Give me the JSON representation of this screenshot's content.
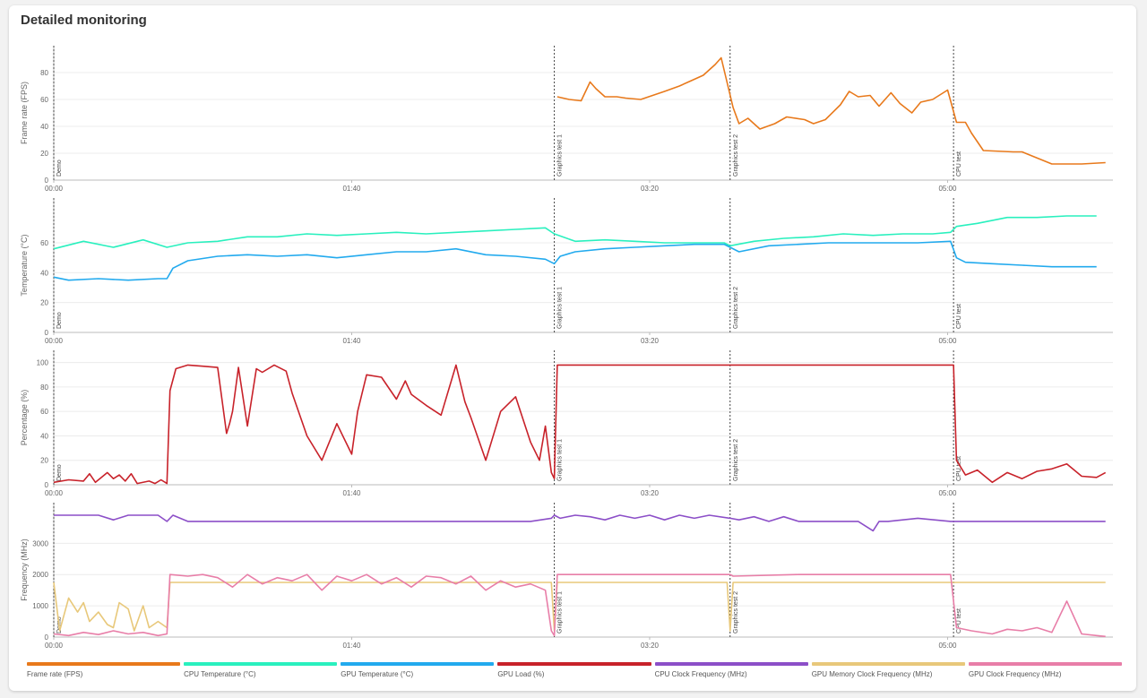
{
  "header": {
    "title": "Detailed monitoring"
  },
  "chart_data": {
    "type": "line",
    "x_unit": "mm:ss",
    "x_tick_labels": [
      "00:00",
      "01:40",
      "03:20",
      "05:00"
    ],
    "segments": [
      {
        "label": "Demo",
        "start": "00:00"
      },
      {
        "label": "Graphics test 1",
        "start": "02:48"
      },
      {
        "label": "Graphics test 2",
        "start": "03:47"
      },
      {
        "label": "CPU test",
        "start": "05:02"
      }
    ],
    "panels": [
      {
        "id": "fps",
        "ylabel": "Frame rate (FPS)",
        "ylim": [
          0,
          100
        ],
        "yticks": [
          "0",
          "20",
          "40",
          "60",
          "80"
        ],
        "series": [
          {
            "name": "Frame rate (FPS)",
            "color": "#e8791b",
            "x": [
              "02:49",
              "02:53",
              "02:57",
              "03:00",
              "03:02",
              "03:05",
              "03:09",
              "03:12",
              "03:17",
              "03:21",
              "03:25",
              "03:30",
              "03:34",
              "03:38",
              "03:42",
              "03:44",
              "03:48",
              "03:50",
              "03:53",
              "03:57",
              "04:02",
              "04:06",
              "04:12",
              "04:15",
              "04:19",
              "04:24",
              "04:27",
              "04:30",
              "04:34",
              "04:37",
              "04:41",
              "04:44",
              "04:48",
              "04:51",
              "04:55",
              "05:00",
              "05:03",
              "05:06",
              "05:08",
              "05:12",
              "05:22",
              "05:25",
              "05:35",
              "05:45",
              "05:53"
            ],
            "values": [
              62,
              60,
              59,
              73,
              68,
              62,
              62,
              61,
              60,
              63,
              66,
              70,
              74,
              78,
              86,
              91,
              54,
              42,
              46,
              38,
              42,
              47,
              45,
              42,
              45,
              56,
              66,
              62,
              63,
              55,
              65,
              57,
              50,
              58,
              60,
              67,
              43,
              43,
              35,
              22,
              21,
              21,
              12,
              12,
              13
            ]
          }
        ]
      },
      {
        "id": "temperature",
        "ylabel": "Temperature (°C)",
        "ylim": [
          0,
          90
        ],
        "yticks": [
          "0",
          "20",
          "40",
          "60"
        ],
        "series": [
          {
            "name": "CPU Temperature (°C)",
            "color": "#29f0be",
            "x": [
              "00:00",
              "00:10",
              "00:20",
              "00:30",
              "00:38",
              "00:45",
              "00:55",
              "01:05",
              "01:15",
              "01:25",
              "01:35",
              "01:45",
              "01:55",
              "02:05",
              "02:15",
              "02:25",
              "02:35",
              "02:45",
              "02:48",
              "02:55",
              "03:05",
              "03:15",
              "03:25",
              "03:35",
              "03:45",
              "03:47",
              "03:55",
              "04:05",
              "04:15",
              "04:25",
              "04:35",
              "04:45",
              "04:55",
              "05:01",
              "05:03",
              "05:10",
              "05:20",
              "05:30",
              "05:40",
              "05:50"
            ],
            "values": [
              56,
              61,
              57,
              62,
              57,
              60,
              61,
              64,
              64,
              66,
              65,
              66,
              67,
              66,
              67,
              68,
              69,
              70,
              66,
              61,
              62,
              61,
              60,
              60,
              60,
              58,
              61,
              63,
              64,
              66,
              65,
              66,
              66,
              67,
              71,
              73,
              77,
              77,
              78,
              78
            ]
          },
          {
            "name": "GPU Temperature (°C)",
            "color": "#22aaee",
            "x": [
              "00:00",
              "00:05",
              "00:15",
              "00:25",
              "00:35",
              "00:38",
              "00:40",
              "00:45",
              "00:55",
              "01:05",
              "01:15",
              "01:25",
              "01:35",
              "01:45",
              "01:55",
              "02:05",
              "02:15",
              "02:25",
              "02:35",
              "02:45",
              "02:47",
              "02:48",
              "02:50",
              "02:55",
              "03:05",
              "03:15",
              "03:25",
              "03:35",
              "03:45",
              "03:47",
              "03:50",
              "04:00",
              "04:10",
              "04:20",
              "04:30",
              "04:40",
              "04:50",
              "05:01",
              "05:03",
              "05:06",
              "05:15",
              "05:25",
              "05:35",
              "05:50"
            ],
            "values": [
              37,
              35,
              36,
              35,
              36,
              36,
              43,
              48,
              51,
              52,
              51,
              52,
              50,
              52,
              54,
              54,
              56,
              52,
              51,
              49,
              47,
              46,
              51,
              54,
              56,
              57,
              58,
              59,
              59,
              57,
              54,
              58,
              59,
              60,
              60,
              60,
              60,
              61,
              50,
              47,
              46,
              45,
              44,
              44
            ]
          }
        ]
      },
      {
        "id": "percentage",
        "ylabel": "Percentage (%)",
        "ylim": [
          0,
          110
        ],
        "yticks": [
          "0",
          "20",
          "40",
          "60",
          "80",
          "100"
        ],
        "series": [
          {
            "name": "GPU Load (%)",
            "color": "#c8222a",
            "x": [
              "00:00",
              "00:05",
              "00:10",
              "00:12",
              "00:14",
              "00:18",
              "00:20",
              "00:22",
              "00:24",
              "00:26",
              "00:28",
              "00:32",
              "00:34",
              "00:36",
              "00:38",
              "00:39",
              "00:41",
              "00:45",
              "00:50",
              "00:55",
              "00:58",
              "00:59",
              "01:00",
              "01:02",
              "01:05",
              "01:08",
              "01:10",
              "01:14",
              "01:18",
              "01:20",
              "01:25",
              "01:30",
              "01:35",
              "01:40",
              "01:42",
              "01:45",
              "01:50",
              "01:55",
              "01:58",
              "02:00",
              "02:05",
              "02:10",
              "02:15",
              "02:18",
              "02:20",
              "02:25",
              "02:30",
              "02:35",
              "02:40",
              "02:43",
              "02:45",
              "02:47",
              "02:48",
              "02:49",
              "03:00",
              "03:20",
              "03:40",
              "03:47",
              "04:00",
              "04:20",
              "04:40",
              "05:00",
              "05:02",
              "05:03",
              "05:06",
              "05:10",
              "05:15",
              "05:20",
              "05:25",
              "05:30",
              "05:35",
              "05:40",
              "05:45",
              "05:50",
              "05:53"
            ],
            "values": [
              2,
              4,
              3,
              9,
              2,
              10,
              5,
              8,
              3,
              9,
              1,
              3,
              1,
              4,
              1,
              77,
              95,
              98,
              97,
              96,
              42,
              50,
              60,
              96,
              48,
              95,
              92,
              98,
              93,
              75,
              40,
              20,
              50,
              25,
              60,
              90,
              88,
              70,
              85,
              74,
              65,
              57,
              98,
              68,
              55,
              20,
              60,
              72,
              35,
              20,
              48,
              10,
              5,
              98,
              98,
              98,
              98,
              98,
              98,
              98,
              98,
              98,
              98,
              20,
              8,
              12,
              2,
              10,
              5,
              11,
              13,
              17,
              7,
              6,
              10
            ]
          }
        ]
      },
      {
        "id": "frequency",
        "ylabel": "Frequency (MHz)",
        "ylim": [
          0,
          4300
        ],
        "yticks": [
          "0",
          "1000",
          "2000",
          "3000"
        ],
        "series": [
          {
            "name": "CPU Clock Frequency (MHz)",
            "color": "#8c4fc8",
            "x": [
              "00:00",
              "00:15",
              "00:20",
              "00:25",
              "00:35",
              "00:38",
              "00:40",
              "00:45",
              "00:50",
              "01:00",
              "01:20",
              "01:30",
              "01:50",
              "02:10",
              "02:40",
              "02:47",
              "02:48",
              "02:50",
              "02:55",
              "03:00",
              "03:05",
              "03:10",
              "03:15",
              "03:20",
              "03:25",
              "03:30",
              "03:35",
              "03:40",
              "03:47",
              "03:50",
              "03:55",
              "04:00",
              "04:05",
              "04:10",
              "04:20",
              "04:30",
              "04:35",
              "04:37",
              "04:40",
              "04:50",
              "05:01",
              "05:03",
              "05:20",
              "05:40",
              "05:53"
            ],
            "values": [
              3900,
              3900,
              3750,
              3900,
              3900,
              3700,
              3900,
              3700,
              3700,
              3700,
              3700,
              3700,
              3700,
              3700,
              3700,
              3800,
              3900,
              3800,
              3900,
              3850,
              3750,
              3900,
              3800,
              3900,
              3750,
              3900,
              3800,
              3900,
              3800,
              3750,
              3850,
              3700,
              3850,
              3700,
              3700,
              3700,
              3400,
              3700,
              3700,
              3800,
              3700,
              3700,
              3700,
              3700,
              3700
            ]
          },
          {
            "name": "GPU Memory Clock Frequency (MHz)",
            "color": "#e8c87a",
            "x": [
              "00:00",
              "00:02",
              "00:05",
              "00:08",
              "00:10",
              "00:12",
              "00:15",
              "00:18",
              "00:20",
              "00:22",
              "00:25",
              "00:27",
              "00:30",
              "00:32",
              "00:35",
              "00:38",
              "00:39",
              "01:00",
              "01:20",
              "01:40",
              "02:00",
              "02:20",
              "02:45",
              "02:47",
              "02:48",
              "02:49",
              "03:10",
              "03:30",
              "03:46",
              "03:47",
              "03:48",
              "04:10",
              "04:30",
              "05:01",
              "05:03",
              "05:30",
              "05:53"
            ],
            "values": [
              1750,
              200,
              1250,
              800,
              1100,
              500,
              800,
              400,
              300,
              1100,
              900,
              200,
              1000,
              300,
              500,
              300,
              1750,
              1750,
              1750,
              1750,
              1750,
              1750,
              1750,
              1750,
              200,
              1750,
              1750,
              1750,
              1750,
              200,
              1750,
              1750,
              1750,
              1750,
              1750,
              1750,
              1750
            ]
          },
          {
            "name": "GPU Clock Frequency (MHz)",
            "color": "#e87ea8",
            "x": [
              "00:00",
              "00:05",
              "00:10",
              "00:15",
              "00:20",
              "00:25",
              "00:30",
              "00:35",
              "00:38",
              "00:39",
              "00:45",
              "00:50",
              "00:55",
              "01:00",
              "01:05",
              "01:10",
              "01:15",
              "01:20",
              "01:25",
              "01:30",
              "01:35",
              "01:40",
              "01:45",
              "01:50",
              "01:55",
              "02:00",
              "02:05",
              "02:10",
              "02:15",
              "02:20",
              "02:25",
              "02:30",
              "02:35",
              "02:40",
              "02:45",
              "02:47",
              "02:48",
              "02:49",
              "03:10",
              "03:30",
              "03:47",
              "03:48",
              "04:10",
              "04:30",
              "05:01",
              "05:03",
              "05:08",
              "05:15",
              "05:20",
              "05:25",
              "05:30",
              "05:35",
              "05:40",
              "05:45",
              "05:50",
              "05:53"
            ],
            "values": [
              100,
              50,
              150,
              80,
              200,
              100,
              150,
              50,
              100,
              2000,
              1950,
              2000,
              1900,
              1600,
              2000,
              1700,
              1900,
              1800,
              2000,
              1500,
              1950,
              1800,
              2000,
              1700,
              1900,
              1600,
              1950,
              1900,
              1700,
              1950,
              1500,
              1800,
              1600,
              1700,
              1500,
              200,
              50,
              2000,
              2000,
              2000,
              2000,
              1950,
              2000,
              2000,
              2000,
              300,
              200,
              100,
              250,
              200,
              300,
              150,
              1150,
              100,
              50,
              20
            ]
          }
        ]
      }
    ]
  },
  "legend": {
    "items": [
      {
        "label": "Frame rate (FPS)",
        "color": "#e8791b"
      },
      {
        "label": "CPU Temperature (°C)",
        "color": "#29f0be"
      },
      {
        "label": "GPU Temperature (°C)",
        "color": "#22aaee"
      },
      {
        "label": "GPU Load (%)",
        "color": "#c8222a"
      },
      {
        "label": "CPU Clock Frequency (MHz)",
        "color": "#8c4fc8"
      },
      {
        "label": "GPU Memory Clock Frequency (MHz)",
        "color": "#e8c87a"
      },
      {
        "label": "GPU Clock Frequency (MHz)",
        "color": "#e87ea8"
      }
    ]
  }
}
